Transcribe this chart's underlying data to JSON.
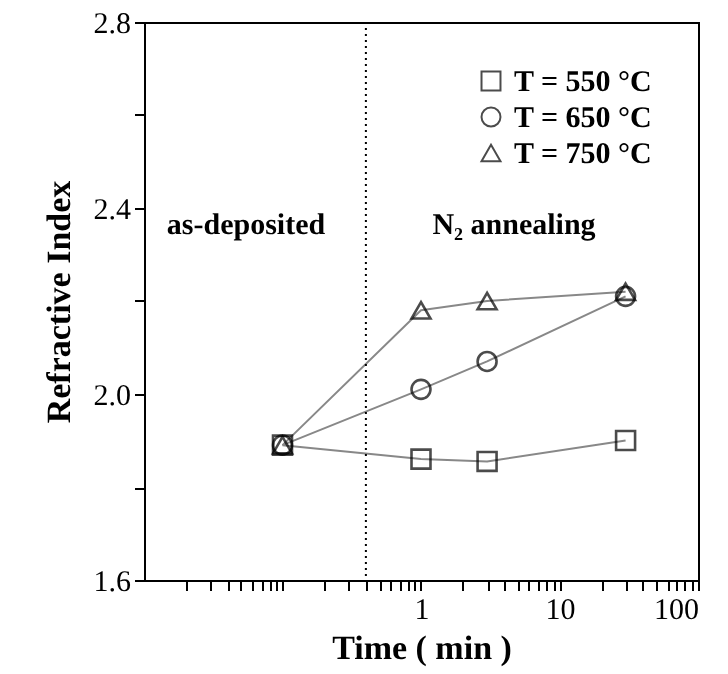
{
  "chart_data": {
    "type": "line",
    "xlabel": "Time ( min )",
    "ylabel": "Refractive Index",
    "log": "x",
    "xlim": [
      0.01,
      100
    ],
    "ylim": [
      1.6,
      2.8
    ],
    "xticks": [
      {
        "value": 0.02,
        "label": null
      },
      {
        "value": 0.03,
        "label": null
      },
      {
        "value": 0.04,
        "label": null
      },
      {
        "value": 0.05,
        "label": null
      },
      {
        "value": 0.06,
        "label": null
      },
      {
        "value": 0.07,
        "label": null
      },
      {
        "value": 0.08,
        "label": null
      },
      {
        "value": 0.09,
        "label": null
      },
      {
        "value": 0.1,
        "label": null
      },
      {
        "value": 0.2,
        "label": null
      },
      {
        "value": 0.3,
        "label": null
      },
      {
        "value": 0.4,
        "label": null
      },
      {
        "value": 0.5,
        "label": null
      },
      {
        "value": 0.6,
        "label": null
      },
      {
        "value": 0.7,
        "label": null
      },
      {
        "value": 0.8,
        "label": null
      },
      {
        "value": 0.9,
        "label": null
      },
      1,
      {
        "value": 2,
        "label": null
      },
      {
        "value": 3,
        "label": null
      },
      {
        "value": 4,
        "label": null
      },
      {
        "value": 5,
        "label": null
      },
      {
        "value": 6,
        "label": null
      },
      {
        "value": 7,
        "label": null
      },
      {
        "value": 8,
        "label": null
      },
      {
        "value": 9,
        "label": null
      },
      10,
      {
        "value": 20,
        "label": null
      },
      {
        "value": 30,
        "label": null
      },
      {
        "value": 40,
        "label": null
      },
      {
        "value": 50,
        "label": null
      },
      {
        "value": 60,
        "label": null
      },
      {
        "value": 70,
        "label": null
      },
      {
        "value": 80,
        "label": null
      },
      {
        "value": 90,
        "label": null
      },
      100
    ],
    "yticks": [
      1.6,
      {
        "value": 1.8,
        "label": null
      },
      "2.0",
      {
        "value": 2.2,
        "label": null
      },
      2.4,
      {
        "value": 2.6,
        "label": null
      },
      2.8
    ],
    "legend": "top right",
    "grid": false,
    "line_style": "solid",
    "ref_lines": [
      {
        "axis": "x",
        "value": 0.4,
        "line_style": "dotted",
        "color": "#000000"
      }
    ],
    "annotations": [
      "as-deposited",
      "N₂ annealing"
    ],
    "series": [
      {
        "name": "T = 550 °C",
        "color": "#000000",
        "marker": "square",
        "x": [
          0.1,
          1,
          3,
          30
        ],
        "values": [
          1.89,
          1.86,
          1.855,
          1.9
        ]
      },
      {
        "name": "T = 650 °C",
        "color": "#000000",
        "marker": "circle",
        "x": [
          0.1,
          1,
          3,
          30
        ],
        "values": [
          1.89,
          2.01,
          2.07,
          2.21
        ]
      },
      {
        "name": "T = 750 °C",
        "color": "#000000",
        "marker": "triangle",
        "x": [
          0.1,
          1,
          3,
          30
        ],
        "values": [
          1.89,
          2.18,
          2.2,
          2.22
        ]
      }
    ]
  }
}
